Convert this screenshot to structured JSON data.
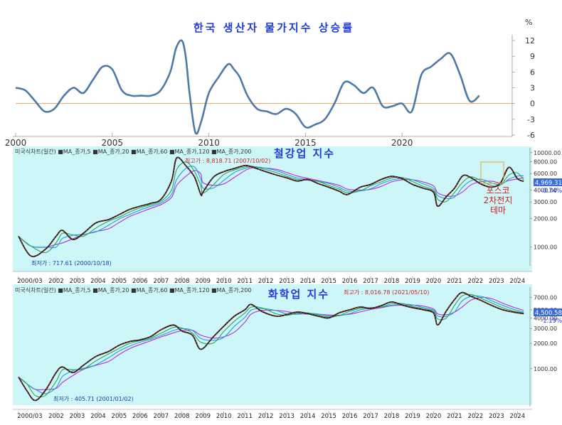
{
  "chart_data": [
    {
      "type": "line",
      "title": "한국 생산자 물가지수 상승률",
      "y_unit_label": "%",
      "ylim": [
        -6,
        13
      ],
      "y_ticks": [
        "12",
        "9",
        "6",
        "3",
        "0",
        "-3",
        "-6"
      ],
      "x_ticks": [
        "2000",
        "2005",
        "2010",
        "2015",
        "2020"
      ],
      "series": [
        {
          "color": "#4f79a6",
          "x": [
            2000.0,
            2000.5,
            2001.0,
            2001.5,
            2002.0,
            2002.5,
            2003.0,
            2003.5,
            2004.0,
            2004.5,
            2005.0,
            2005.5,
            2006.0,
            2006.5,
            2007.0,
            2007.5,
            2008.0,
            2008.3,
            2008.6,
            2008.8,
            2009.0,
            2009.3,
            2009.6,
            2010.0,
            2010.5,
            2011.0,
            2011.3,
            2011.6,
            2012.0,
            2012.5,
            2013.0,
            2013.5,
            2014.0,
            2014.5,
            2015.0,
            2015.5,
            2016.0,
            2016.5,
            2017.0,
            2017.5,
            2018.0,
            2018.5,
            2019.0,
            2019.5,
            2020.0,
            2020.5,
            2021.0,
            2021.5,
            2022.0,
            2022.5,
            2023.0,
            2023.5,
            2024.0
          ],
          "y": [
            3.0,
            2.5,
            0.5,
            -1.5,
            -1.0,
            1.5,
            3.0,
            2.0,
            4.5,
            7.0,
            6.5,
            2.5,
            1.5,
            1.5,
            1.5,
            2.5,
            6.0,
            10.5,
            12.0,
            9.0,
            2.0,
            -5.5,
            -3.5,
            2.0,
            5.0,
            7.5,
            6.5,
            5.0,
            1.5,
            -1.0,
            -1.5,
            -2.0,
            -1.0,
            -2.0,
            -4.5,
            -4.0,
            -3.0,
            0.0,
            4.0,
            3.5,
            2.0,
            3.0,
            -0.5,
            -0.5,
            0.0,
            -1.5,
            5.5,
            7.0,
            8.5,
            9.5,
            5.5,
            0.5,
            1.5
          ]
        }
      ]
    },
    {
      "type": "line",
      "title": "철강업 지수",
      "header_text": "미국식차트(일간) ■MA_종가,5 ■MA_종가,20 ■MA_종가,60 ■MA_종가,120 ■MA_종가,200",
      "scale": "log",
      "ylim": [
        700,
        10000
      ],
      "y_ticks": [
        "10000.00",
        "8000.00",
        "6000.00",
        "4000.00",
        "3000.00",
        "2000.00",
        "1000.00"
      ],
      "current_value": "4,969.31",
      "change_pct": "-0.74%",
      "high_label": "최고가 : 8,818.71 (2007/10/02)",
      "low_label": "최저가 : 717.61 (2000/10/18)",
      "annotation": "포스코\n2차전지\n테마",
      "x_ticks": [
        "2000/03",
        "2002",
        "2003",
        "2004",
        "2005",
        "2006",
        "2007",
        "2008",
        "2009",
        "2010",
        "2011",
        "2012",
        "2013",
        "2014",
        "2015",
        "2016",
        "2017",
        "2018",
        "2019",
        "2020",
        "2021",
        "2022",
        "2023",
        "2024"
      ],
      "series": [
        {
          "name": "MA_종가,5",
          "color": "#e0262b",
          "x": [
            2000.2,
            2000.8,
            2001.5,
            2002.0,
            2002.3,
            2002.8,
            2003.3,
            2003.9,
            2004.5,
            2005.0,
            2005.5,
            2006.0,
            2006.5,
            2007.0,
            2007.5,
            2007.75,
            2008.2,
            2008.6,
            2008.9,
            2009.0,
            2009.5,
            2010.0,
            2010.5,
            2011.0,
            2011.3,
            2011.8,
            2012.5,
            2013.0,
            2013.5,
            2014.0,
            2014.5,
            2015.0,
            2015.5,
            2015.9,
            2016.5,
            2017.0,
            2017.5,
            2018.0,
            2018.5,
            2019.0,
            2019.5,
            2020.0,
            2020.2,
            2020.6,
            2021.0,
            2021.4,
            2021.8,
            2022.3,
            2022.8,
            2023.2,
            2023.6,
            2024.0,
            2024.3
          ],
          "y": [
            1300,
            800,
            950,
            1300,
            1500,
            1200,
            1400,
            1800,
            1950,
            2200,
            2500,
            2700,
            2900,
            3200,
            5000,
            8818.71,
            7200,
            5500,
            3600,
            3800,
            5500,
            6300,
            6800,
            7300,
            7100,
            6500,
            5800,
            5400,
            5000,
            5200,
            4700,
            4300,
            3900,
            3600,
            4300,
            4600,
            5200,
            5600,
            5300,
            4600,
            4200,
            3800,
            2700,
            3400,
            4200,
            5700,
            5400,
            4600,
            4300,
            4800,
            7000,
            5300,
            4969.31
          ]
        }
      ]
    },
    {
      "type": "line",
      "title": "화학업 지수",
      "header_text": "미국식차트(일간) ■MA_종가,5 ■MA_종가,20 ■MA_종가,60 ■MA_종가,120 ■MA_종가,200",
      "scale": "log",
      "ylim": [
        400,
        8500
      ],
      "y_ticks": [
        "7000.00",
        "5000.00",
        "4000.00",
        "3000.00",
        "2000.00",
        "1000.00"
      ],
      "current_value": "4,500.58",
      "change_pct": "-1.19%",
      "high_label": "최고가 : 8,016.78 (2021/05/10)",
      "low_label": "최저가 : 405.71 (2001/01/02)",
      "x_ticks": [
        "2000/03",
        "2002",
        "2003",
        "2004",
        "2005",
        "2006",
        "2007",
        "2008",
        "2009",
        "2010",
        "2011",
        "2012",
        "2013",
        "2014",
        "2015",
        "2016",
        "2017",
        "2018",
        "2019",
        "2020",
        "2021",
        "2022",
        "2023",
        "2024"
      ],
      "series": [
        {
          "name": "MA_종가,5",
          "color": "#e0262b",
          "x": [
            2000.2,
            2000.6,
            2001.0,
            2001.5,
            2002.0,
            2002.3,
            2002.8,
            2003.3,
            2003.9,
            2004.5,
            2005.0,
            2005.5,
            2006.0,
            2006.5,
            2007.0,
            2007.6,
            2008.0,
            2008.5,
            2008.9,
            2009.5,
            2010.0,
            2010.5,
            2011.0,
            2011.3,
            2011.8,
            2012.5,
            2013.0,
            2013.5,
            2014.0,
            2014.5,
            2015.0,
            2015.5,
            2016.0,
            2016.5,
            2017.0,
            2017.5,
            2018.0,
            2018.5,
            2019.0,
            2019.5,
            2020.0,
            2020.2,
            2020.6,
            2021.0,
            2021.35,
            2021.8,
            2022.3,
            2022.8,
            2023.3,
            2023.8,
            2024.3
          ],
          "y": [
            800,
            550,
            420,
            560,
            900,
            1050,
            900,
            1100,
            1400,
            1600,
            1900,
            2100,
            2200,
            2400,
            2900,
            3300,
            2800,
            2500,
            1700,
            2400,
            3200,
            4200,
            5000,
            5800,
            4800,
            4200,
            4400,
            4700,
            4500,
            4200,
            4000,
            4600,
            5000,
            5400,
            5200,
            5600,
            6200,
            5700,
            5300,
            5000,
            4600,
            3300,
            4800,
            6600,
            8016.78,
            7200,
            6400,
            5600,
            5000,
            4700,
            4500.58
          ]
        }
      ]
    }
  ]
}
